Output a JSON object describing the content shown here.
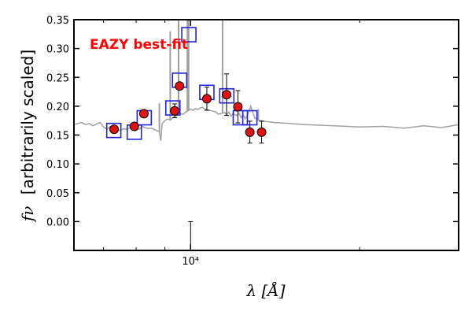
{
  "chart_data": {
    "type": "scatter",
    "title": "",
    "xlabel": "λ [Å]",
    "ylabel_symbol": "fν",
    "ylabel_text": "[arbitrarily scaled]",
    "x_scale": "log",
    "xlim": [
      6200,
      30000
    ],
    "ylim": [
      -0.05,
      0.35
    ],
    "xtick_label": "10⁴",
    "xticks": [
      10000
    ],
    "yticks": [
      0.0,
      0.05,
      0.1,
      0.15,
      0.2,
      0.25,
      0.3,
      0.35
    ],
    "ytick_labels": [
      "0.00",
      "0.05",
      "0.10",
      "0.15",
      "0.20",
      "0.25",
      "0.30",
      "0.35"
    ],
    "annotation": "EAZY best-fit",
    "colors": {
      "annotation": "#ff0000",
      "template": "#a0a0a0",
      "model_box": "#2222dd",
      "point_fill": "#dd1111",
      "point_edge": "#000000",
      "errorbar": "#000000"
    },
    "observed": {
      "x": [
        7310,
        7940,
        8260,
        9370,
        9560,
        10690,
        11590,
        12140,
        12750,
        13380
      ],
      "y": [
        0.16,
        0.165,
        0.187,
        0.192,
        0.235,
        0.213,
        0.22,
        0.199,
        0.155,
        0.155
      ],
      "yerr": [
        0.006,
        0.005,
        0.006,
        0.012,
        0.006,
        0.02,
        0.036,
        0.028,
        0.019,
        0.019
      ]
    },
    "model": {
      "x": [
        7300,
        7940,
        8270,
        9300,
        9560,
        9930,
        10690,
        11600,
        12260,
        12750
      ],
      "y": [
        0.158,
        0.155,
        0.18,
        0.197,
        0.245,
        0.324,
        0.224,
        0.218,
        0.18,
        0.18
      ]
    },
    "template": {
      "x": [
        6200,
        6300,
        6400,
        6500,
        6600,
        6700,
        6800,
        6900,
        7000,
        7100,
        7200,
        7300,
        7400,
        7500,
        7600,
        7700,
        7800,
        7900,
        8000,
        8100,
        8200,
        8300,
        8400,
        8500,
        8600,
        8700,
        8800,
        8850,
        8900,
        9000,
        9100,
        9200,
        9300,
        9400,
        9500,
        9600,
        9700,
        9800,
        9900,
        10000,
        10100,
        10200,
        10300,
        10400,
        10500,
        10600,
        10700,
        10800,
        10900,
        11000,
        11100,
        11200,
        11300,
        11400,
        11500,
        11600,
        11700,
        11800,
        11900,
        12000,
        12100,
        12200,
        12300,
        12400,
        12500,
        12600,
        12700,
        12800,
        13000,
        13200,
        13500,
        14000,
        14500,
        15000,
        16000,
        17000,
        18000,
        19000,
        20000,
        22000,
        24000,
        26000,
        28000,
        30000
      ],
      "y": [
        0.168,
        0.17,
        0.172,
        0.168,
        0.17,
        0.166,
        0.169,
        0.172,
        0.164,
        0.16,
        0.165,
        0.162,
        0.159,
        0.158,
        0.161,
        0.16,
        0.163,
        0.159,
        0.162,
        0.16,
        0.165,
        0.163,
        0.161,
        0.162,
        0.16,
        0.158,
        0.155,
        0.14,
        0.17,
        0.175,
        0.178,
        0.176,
        0.18,
        0.183,
        0.185,
        0.187,
        0.186,
        0.19,
        0.192,
        0.195,
        0.193,
        0.196,
        0.194,
        0.197,
        0.198,
        0.195,
        0.194,
        0.193,
        0.192,
        0.191,
        0.19,
        0.186,
        0.187,
        0.188,
        0.189,
        0.185,
        0.19,
        0.183,
        0.187,
        0.185,
        0.184,
        0.188,
        0.18,
        0.186,
        0.178,
        0.183,
        0.19,
        0.2,
        0.18,
        0.176,
        0.174,
        0.172,
        0.171,
        0.17,
        0.168,
        0.167,
        0.166,
        0.165,
        0.164,
        0.165,
        0.162,
        0.166,
        0.163,
        0.168
      ],
      "emission_lines": [
        {
          "x": 8800,
          "y": 0.205
        },
        {
          "x": 9200,
          "y": 0.33
        },
        {
          "x": 9520,
          "y": 0.35
        },
        {
          "x": 9870,
          "y": 0.35
        },
        {
          "x": 9920,
          "y": 0.35
        },
        {
          "x": 11400,
          "y": 0.35
        },
        {
          "x": 13200,
          "y": 0.195
        }
      ],
      "absorption_line": {
        "x": 10000,
        "y": -0.045
      }
    }
  }
}
